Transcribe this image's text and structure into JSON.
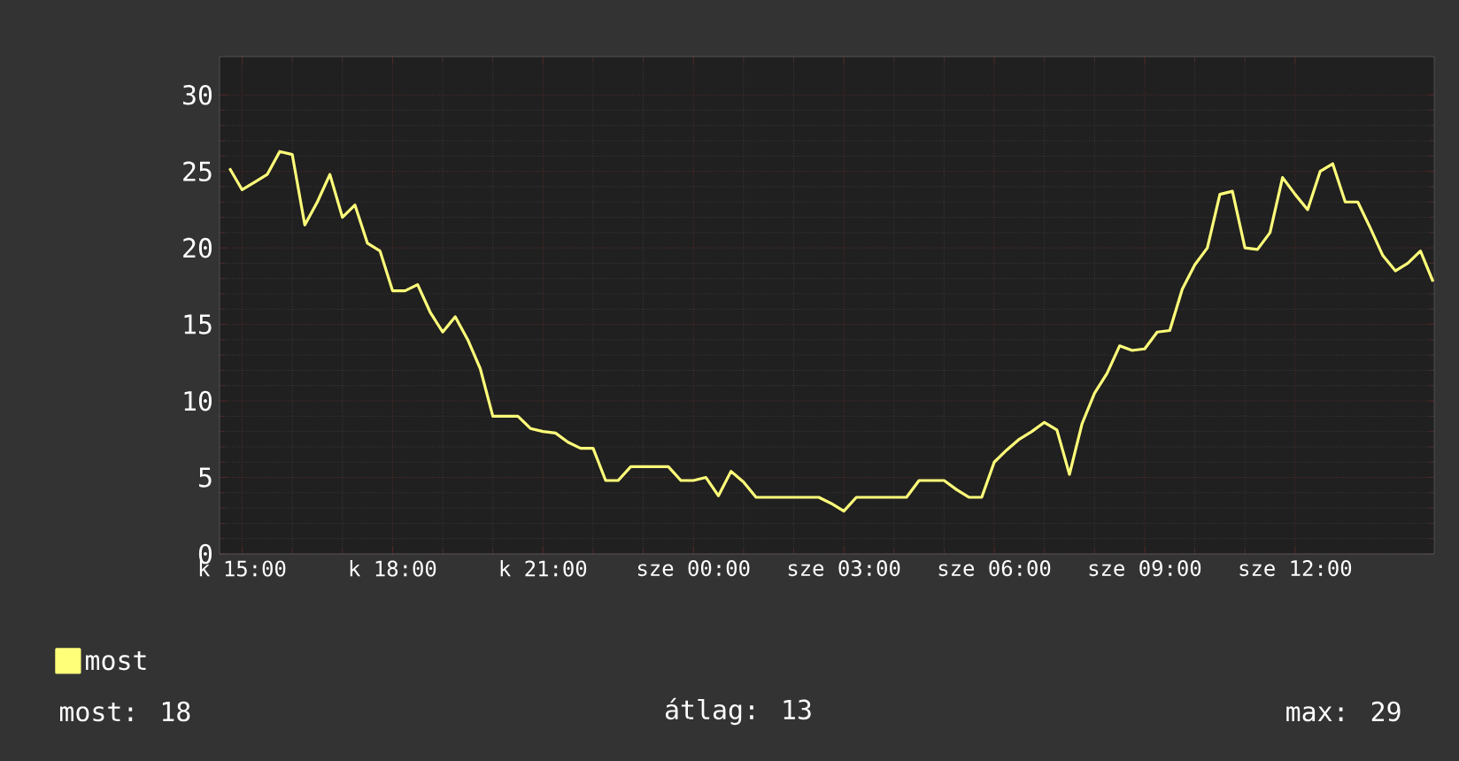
{
  "chart_data": {
    "type": "line",
    "categories": [
      null,
      "k 15:00",
      null,
      null,
      null,
      null,
      null,
      null,
      null,
      null,
      null,
      null,
      null,
      "k 18:00",
      null,
      null,
      null,
      null,
      null,
      null,
      null,
      null,
      null,
      null,
      null,
      "k 21:00",
      null,
      null,
      null,
      null,
      null,
      null,
      null,
      null,
      null,
      null,
      null,
      "sze 00:00",
      null,
      null,
      null,
      null,
      null,
      null,
      null,
      null,
      null,
      null,
      null,
      "sze 03:00",
      null,
      null,
      null,
      null,
      null,
      null,
      null,
      null,
      null,
      null,
      null,
      "sze 06:00",
      null,
      null,
      null,
      null,
      null,
      null,
      null,
      null,
      null,
      null,
      null,
      "sze 09:00",
      null,
      null,
      null,
      null,
      null,
      null,
      null,
      null,
      null,
      null,
      null,
      "sze 12:00",
      null,
      null,
      null,
      null,
      null,
      null,
      null,
      null,
      null,
      null,
      null
    ],
    "series": [
      {
        "name": "most",
        "color": "#ffff7a",
        "values": [
          25.2,
          23.8,
          24.3,
          24.8,
          26.3,
          26.1,
          21.5,
          23.0,
          24.8,
          22.0,
          22.8,
          20.3,
          19.8,
          17.2,
          17.2,
          17.6,
          15.8,
          14.5,
          15.5,
          14.0,
          12.1,
          9.0,
          9.0,
          9.0,
          8.2,
          8.0,
          7.9,
          7.3,
          6.9,
          6.9,
          4.8,
          4.8,
          5.7,
          5.7,
          5.7,
          5.7,
          4.8,
          4.8,
          5.0,
          3.8,
          5.4,
          4.7,
          3.7,
          3.7,
          3.7,
          3.7,
          3.7,
          3.7,
          3.3,
          2.8,
          3.7,
          3.7,
          3.7,
          3.7,
          3.7,
          4.8,
          4.8,
          4.8,
          4.2,
          3.7,
          3.7,
          6.0,
          6.8,
          7.5,
          8.0,
          8.6,
          8.1,
          5.2,
          8.5,
          10.5,
          11.8,
          13.6,
          13.3,
          13.4,
          14.5,
          14.6,
          17.3,
          18.9,
          20.0,
          23.5,
          23.7,
          20.0,
          19.9,
          21.0,
          24.6,
          23.5,
          22.5,
          25.0,
          25.5,
          23.0,
          23.0,
          21.3,
          19.5,
          18.5,
          19.0,
          19.8,
          17.8
        ]
      }
    ],
    "ylim": [
      0,
      32.5
    ],
    "yticks": [
      0,
      5,
      10,
      15,
      20,
      25,
      30
    ],
    "grid": true,
    "legend": "bottom left",
    "annotations": [
      "most: 18",
      "átlag: 13",
      "max: 29"
    ]
  }
}
